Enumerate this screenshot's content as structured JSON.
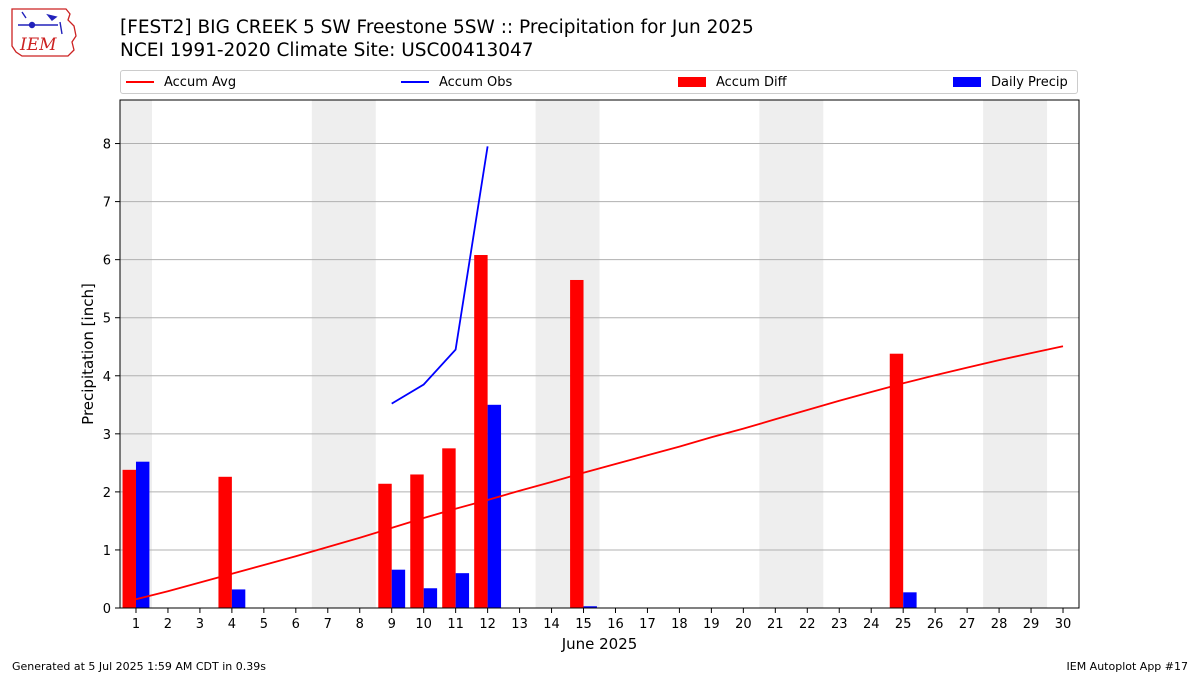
{
  "header": {
    "logo_text": "IEM",
    "title_line1": "[FEST2] BIG CREEK 5 SW Freestone 5SW :: Precipitation for Jun 2025",
    "title_line2": "NCEI 1991-2020 Climate Site: USC00413047"
  },
  "legend": {
    "placement": "top",
    "items": [
      {
        "label": "Accum Avg",
        "kind": "line",
        "color": "#ff0000"
      },
      {
        "label": "Accum Obs",
        "kind": "line",
        "color": "#0000ff"
      },
      {
        "label": "Accum Diff",
        "kind": "bar",
        "color": "#ff0000"
      },
      {
        "label": "Daily Precip",
        "kind": "bar",
        "color": "#0000ff"
      }
    ]
  },
  "footer": {
    "left": "Generated at 5 Jul 2025 1:59 AM CDT in 0.39s",
    "right": "IEM Autoplot App #17"
  },
  "chart_data": {
    "type": "bar",
    "title": "[FEST2] BIG CREEK 5 SW Freestone 5SW :: Precipitation for Jun 2025",
    "subtitle": "NCEI 1991-2020 Climate Site: USC00413047",
    "xlabel": "June 2025",
    "ylabel": "Precipitation [inch]",
    "x": [
      1,
      2,
      3,
      4,
      5,
      6,
      7,
      8,
      9,
      10,
      11,
      12,
      13,
      14,
      15,
      16,
      17,
      18,
      19,
      20,
      21,
      22,
      23,
      24,
      25,
      26,
      27,
      28,
      29,
      30
    ],
    "xlim": [
      0.5,
      30.5
    ],
    "ylim": [
      0,
      8.75
    ],
    "yticks": [
      0,
      1,
      2,
      3,
      4,
      5,
      6,
      7,
      8
    ],
    "grid": "horizontal",
    "weekend_shading_color": "#eeeeee",
    "weekend_bands": [
      [
        0.5,
        1.5
      ],
      [
        6.5,
        8.5
      ],
      [
        13.5,
        15.5
      ],
      [
        20.5,
        22.5
      ],
      [
        27.5,
        29.5
      ]
    ],
    "series": [
      {
        "name": "Accum Avg",
        "kind": "line",
        "color": "#ff0000",
        "x": [
          1,
          2,
          3,
          4,
          5,
          6,
          7,
          8,
          9,
          10,
          11,
          12,
          13,
          14,
          15,
          16,
          17,
          18,
          19,
          20,
          21,
          22,
          23,
          24,
          25,
          26,
          27,
          28,
          29,
          30
        ],
        "values": [
          0.15,
          0.29,
          0.44,
          0.59,
          0.74,
          0.89,
          1.05,
          1.21,
          1.38,
          1.55,
          1.71,
          1.86,
          2.02,
          2.17,
          2.33,
          2.48,
          2.63,
          2.78,
          2.94,
          3.09,
          3.25,
          3.41,
          3.57,
          3.72,
          3.87,
          4.01,
          4.14,
          4.27,
          4.39,
          4.51
        ]
      },
      {
        "name": "Accum Obs",
        "kind": "line",
        "color": "#0000ff",
        "x": [
          9,
          10,
          11,
          12
        ],
        "values": [
          3.52,
          3.85,
          4.45,
          7.95
        ]
      },
      {
        "name": "Accum Diff",
        "kind": "bar",
        "color": "#ff0000",
        "x": [
          1,
          4,
          9,
          10,
          11,
          12,
          15,
          25
        ],
        "values": [
          2.38,
          2.26,
          2.14,
          2.3,
          2.75,
          6.08,
          5.65,
          4.38
        ]
      },
      {
        "name": "Daily Precip",
        "kind": "bar",
        "color": "#0000ff",
        "x": [
          1,
          4,
          9,
          10,
          11,
          12,
          15,
          25
        ],
        "values": [
          2.52,
          0.32,
          0.66,
          0.34,
          0.6,
          3.5,
          0.03,
          0.27
        ]
      }
    ]
  }
}
